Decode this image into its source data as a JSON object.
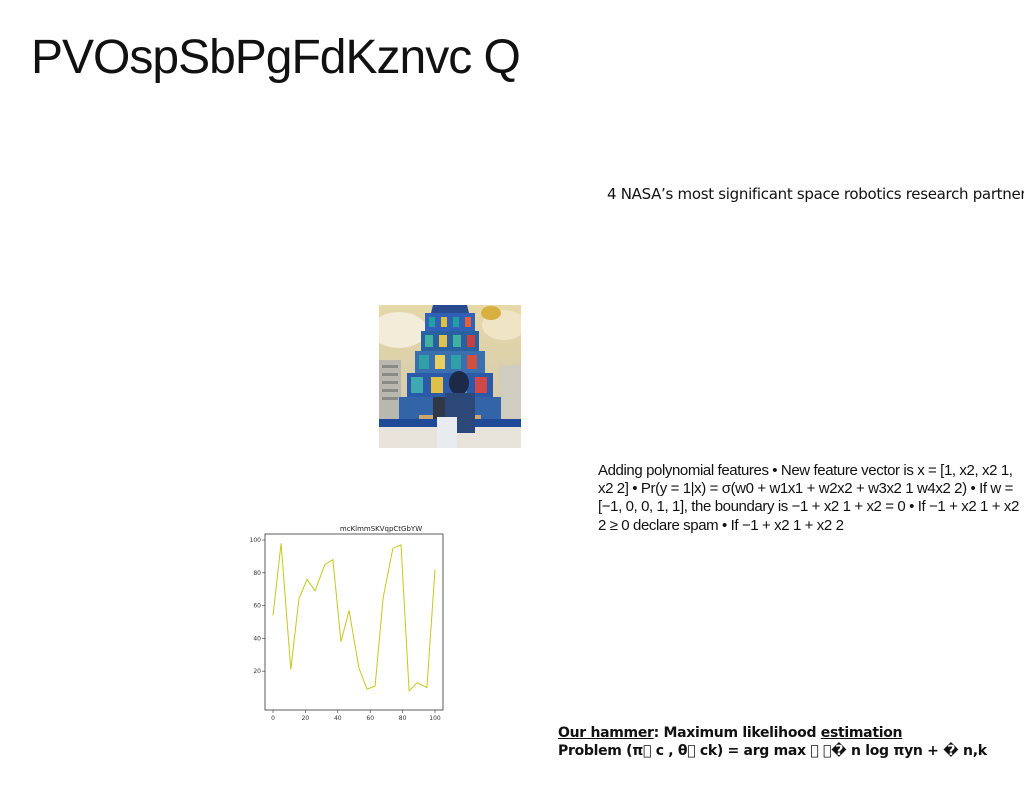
{
  "slide": {
    "title": "PVOspSbPgFdKznvc Q",
    "subtitle": "4 NASA’s most significant space robotics research partner",
    "body_text": "Adding polynomial features • New feature vector is x = [1, x2, x2 1, x2 2] • Pr(y = 1|x) = σ(w0 + w1x1 + w2x2 + w3x2 1 w4x2 2) • If w = [−1, 0, 0, 1, 1], the boundary is −1 + x2 1 + x2 = 0 • If −1 + x2 1 + x2 2 ≥ 0 declare spam • If −1 + x2 1 + x2 2",
    "footer_line1_a": "Our hammer",
    "footer_line1_b": ": Maximum likelihood ",
    "footer_line1_c": "estimation",
    "footer_line2": "Problem (π􏰂 c , θ􏰂 ck) = arg max 􏰂 􏰂� n log πyn + � n,k"
  },
  "chart_data": {
    "type": "line",
    "title": "mcKlmmSKVqpCtGbYW",
    "xlabel": "",
    "ylabel": "",
    "xlim": [
      0,
      100
    ],
    "ylim": [
      0,
      100
    ],
    "xticks": [
      0,
      20,
      40,
      60,
      80,
      100
    ],
    "yticks": [
      20,
      40,
      60,
      80,
      100
    ],
    "grid": false,
    "color": "#c8c81e",
    "x": [
      0,
      5,
      11,
      16,
      21,
      26,
      32,
      37,
      42,
      47,
      53,
      58,
      63,
      68,
      74,
      79,
      84,
      89,
      95,
      100
    ],
    "values": [
      54,
      98,
      21,
      64,
      76,
      69,
      85,
      88,
      38,
      57,
      22,
      9,
      11,
      65,
      95,
      97,
      8,
      13,
      10,
      82
    ]
  }
}
